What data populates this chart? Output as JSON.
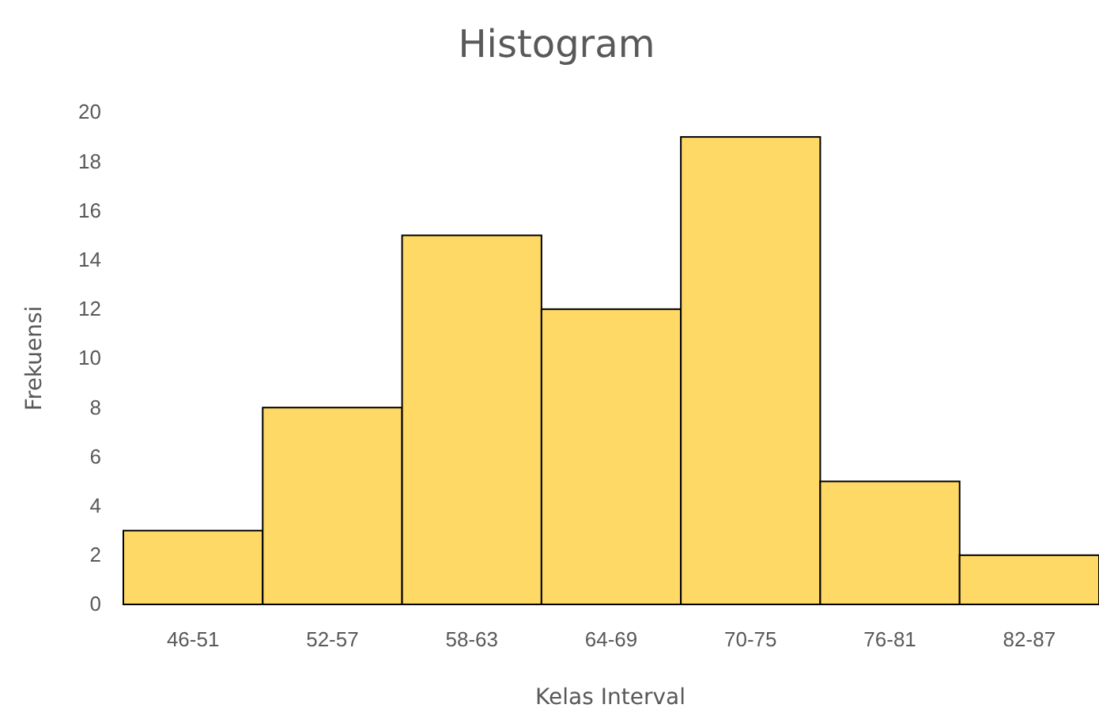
{
  "chart_data": {
    "type": "bar",
    "title": "Histogram",
    "xlabel": "Kelas Interval",
    "ylabel": "Frekuensi",
    "categories": [
      "46-51",
      "52-57",
      "58-63",
      "64-69",
      "70-75",
      "76-81",
      "82-87"
    ],
    "values": [
      3,
      8,
      15,
      12,
      19,
      5,
      2
    ],
    "color": "#ffd966",
    "ylim": [
      0,
      20
    ],
    "yticks": [
      0,
      2,
      4,
      6,
      8,
      10,
      12,
      14,
      16,
      18,
      20
    ],
    "grid": false
  }
}
